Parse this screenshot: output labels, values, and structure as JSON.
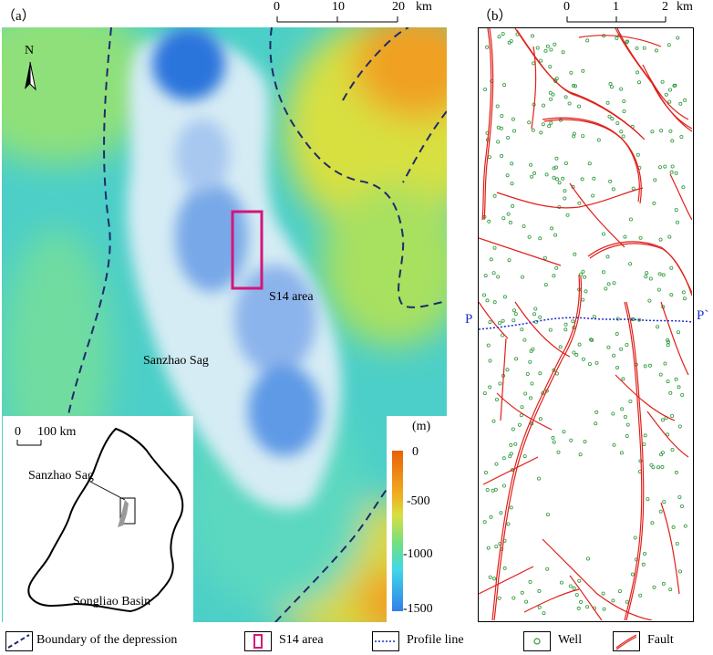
{
  "panel_a": {
    "label": "（a）",
    "scalebar": {
      "ticks": [
        "0",
        "10",
        "20"
      ],
      "unit": "km"
    },
    "north_label": "N",
    "s14_label": "S14 area",
    "sag_label": "Sanzhao Sag",
    "colorbar": {
      "unit": "(m)",
      "ticks": [
        "0",
        "-500",
        "-1000",
        "-1500"
      ],
      "colors": [
        "#e8600a",
        "#f0b020",
        "#70e080",
        "#40d8e8",
        "#3080e8"
      ]
    },
    "inset": {
      "scale_zero": "0",
      "scale_label": "100 km",
      "sag_label": "Sanzhao Sag",
      "basin_label": "Songliao  Basin"
    },
    "colors": {
      "boundary": "#1f2a6b",
      "s14_box": "#d6157a"
    }
  },
  "panel_b": {
    "label": "（b）",
    "scalebar": {
      "ticks": [
        "0",
        "1",
        "2"
      ],
      "unit": "km"
    },
    "profile_start": "P",
    "profile_end": "P`",
    "colors": {
      "fault": "#e0201a",
      "well": "#2e9a3c",
      "profile": "#1a2ecc"
    }
  },
  "legend": {
    "boundary": "Boundary of the depression",
    "s14": "S14 area",
    "profile": "Profile line",
    "well": "Well",
    "fault": "Fault"
  }
}
